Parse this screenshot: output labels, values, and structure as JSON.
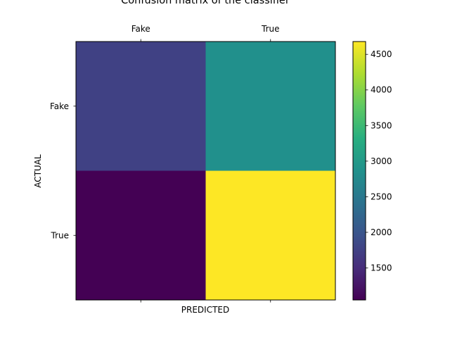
{
  "chart_data": {
    "type": "heatmap",
    "title": "Confusion matrix of the classifier",
    "xlabel": "PREDICTED",
    "ylabel": "ACTUAL",
    "x_categories": [
      "Fake",
      "True"
    ],
    "y_categories": [
      "Fake",
      "True"
    ],
    "values": [
      [
        1750,
        2850
      ],
      [
        1050,
        4680
      ]
    ],
    "colormap": "viridis",
    "colorbar": {
      "ticks": [
        1500,
        2000,
        2500,
        3000,
        3500,
        4000,
        4500
      ],
      "range": [
        1050,
        4680
      ]
    },
    "x_tick_position": "top",
    "grid": false
  }
}
